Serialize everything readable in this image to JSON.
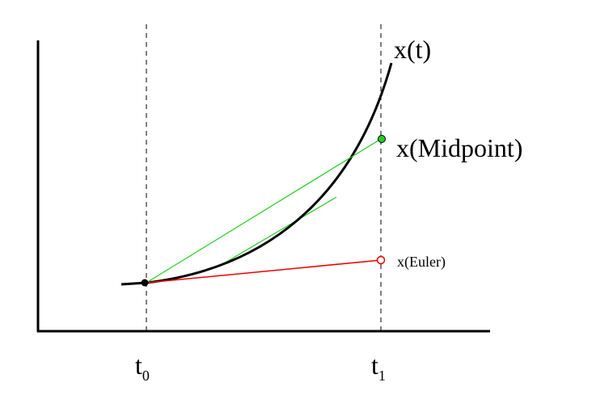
{
  "labels": {
    "curve": "x(t)",
    "midpoint": "x(Midpoint)",
    "euler": "x(Euler)",
    "t0": {
      "text": "t",
      "subscript": "0"
    },
    "t1": {
      "text": "t",
      "subscript": "1"
    }
  }
}
